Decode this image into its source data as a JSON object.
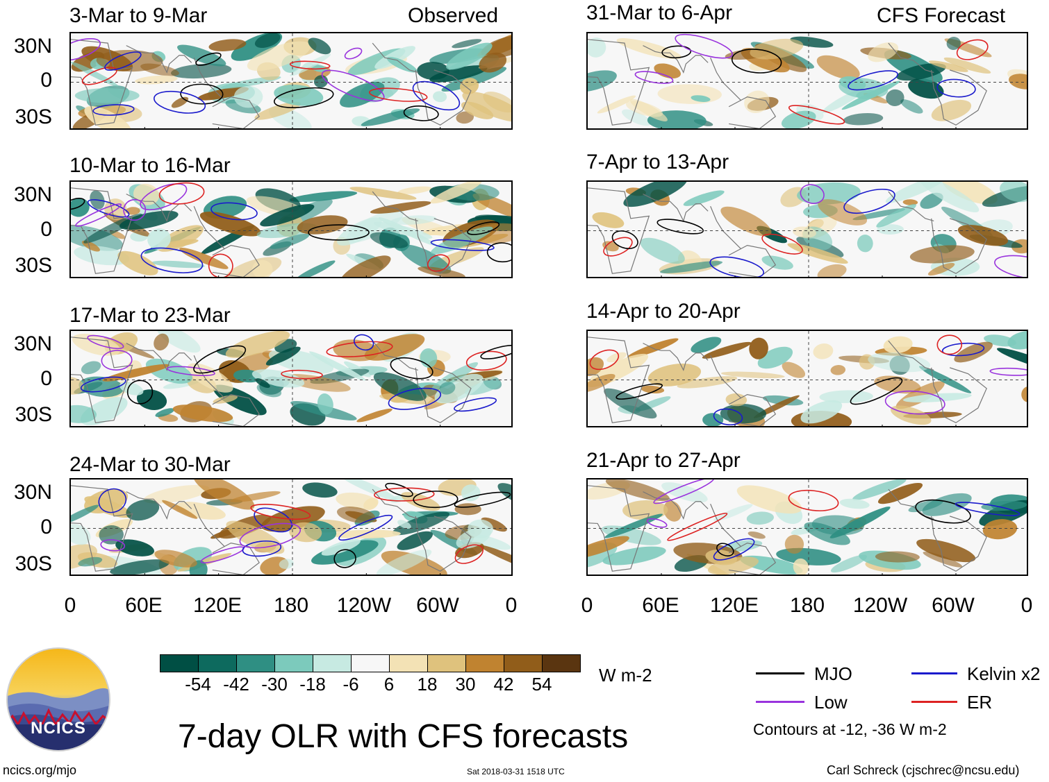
{
  "observed_tag": "Observed",
  "forecast_tag": "CFS Forecast",
  "lat_labels": [
    "30N",
    "0",
    "30S"
  ],
  "lon_labels": [
    "0",
    "60E",
    "120E",
    "180",
    "120W",
    "60W",
    "0"
  ],
  "panels_observed": [
    "3-Mar to 9-Mar",
    "10-Mar to 16-Mar",
    "17-Mar to 23-Mar",
    "24-Mar to 30-Mar"
  ],
  "panels_forecast": [
    "31-Mar to 6-Apr",
    "7-Apr to 13-Apr",
    "14-Apr to 20-Apr",
    "21-Apr to 27-Apr"
  ],
  "colorbar": {
    "colors": [
      "#004f44",
      "#0d6a5e",
      "#2f8f83",
      "#7ccabc",
      "#c7eae2",
      "#f7f7f7",
      "#f3e2b5",
      "#dfc27d",
      "#c08330",
      "#915d1a",
      "#5a3510"
    ],
    "labels": [
      "-54",
      "-42",
      "-30",
      "-18",
      "-6",
      "6",
      "18",
      "30",
      "42",
      "54"
    ],
    "units": "W m-2"
  },
  "legend": {
    "items": [
      {
        "label": "MJO",
        "color": "#000000"
      },
      {
        "label": "Kelvin x2",
        "color": "#1a1acc"
      },
      {
        "label": "Low",
        "color": "#9933dd"
      },
      {
        "label": "ER",
        "color": "#dd2222"
      }
    ],
    "note": "Contours at -12, -36 W m-2"
  },
  "logo_text": "NCICS",
  "main_title": "7-day OLR with CFS forecasts",
  "footer_left": "ncics.org/mjo",
  "footer_center": "Sat 2018-03-31 1518 UTC",
  "footer_right": "Carl Schreck (cjschrec@ncsu.edu)"
}
